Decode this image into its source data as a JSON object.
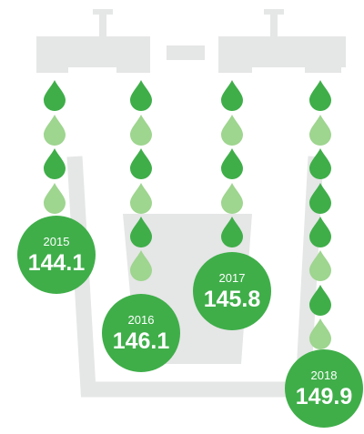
{
  "items": [
    {
      "year": "2015",
      "value": "144.1"
    },
    {
      "year": "2016",
      "value": "146.1"
    },
    {
      "year": "2017",
      "value": "145.8"
    },
    {
      "year": "2018",
      "value": "149.9"
    }
  ]
}
